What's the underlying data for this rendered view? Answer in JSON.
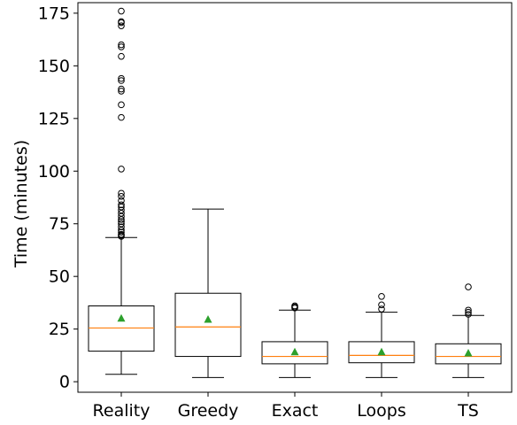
{
  "chart_data": {
    "type": "boxplot",
    "title": "",
    "xlabel": "",
    "ylabel": "Time (minutes)",
    "ylim": [
      -5,
      180
    ],
    "yticks": [
      0,
      25,
      50,
      75,
      100,
      125,
      150,
      175
    ],
    "categories": [
      "Reality",
      "Greedy",
      "Exact",
      "Loops",
      "TS"
    ],
    "boxes": [
      {
        "name": "Reality",
        "whisker_low": 3.5,
        "q1": 14.5,
        "median": 25.5,
        "q3": 36,
        "whisker_high": 68.5,
        "mean": 30,
        "outliers": [
          69,
          69.5,
          70,
          71,
          72,
          73.5,
          75,
          76,
          77,
          78.5,
          80,
          81.5,
          83,
          84,
          86,
          88,
          89.5,
          101,
          125.5,
          131.5,
          138,
          139,
          143,
          144,
          154.5,
          159,
          160,
          169,
          170.5,
          171,
          176
        ]
      },
      {
        "name": "Greedy",
        "whisker_low": 2,
        "q1": 12,
        "median": 26,
        "q3": 42,
        "whisker_high": 82,
        "mean": 29.5,
        "outliers": []
      },
      {
        "name": "Exact",
        "whisker_low": 2,
        "q1": 8.5,
        "median": 12,
        "q3": 19,
        "whisker_high": 34,
        "mean": 14,
        "outliers": [
          35,
          35.5,
          36
        ]
      },
      {
        "name": "Loops",
        "whisker_low": 2,
        "q1": 9,
        "median": 12.5,
        "q3": 19,
        "whisker_high": 33,
        "mean": 14,
        "outliers": [
          34.5,
          36.5,
          40.5
        ]
      },
      {
        "name": "TS",
        "whisker_low": 2,
        "q1": 8.5,
        "median": 12,
        "q3": 18,
        "whisker_high": 31.5,
        "mean": 13.5,
        "outliers": [
          32,
          33,
          34,
          45
        ]
      }
    ],
    "grid": false,
    "colors": {
      "median": "#ff7f0e",
      "mean": "#2ca02c",
      "box": "#000000",
      "outlier": "#000000"
    }
  }
}
